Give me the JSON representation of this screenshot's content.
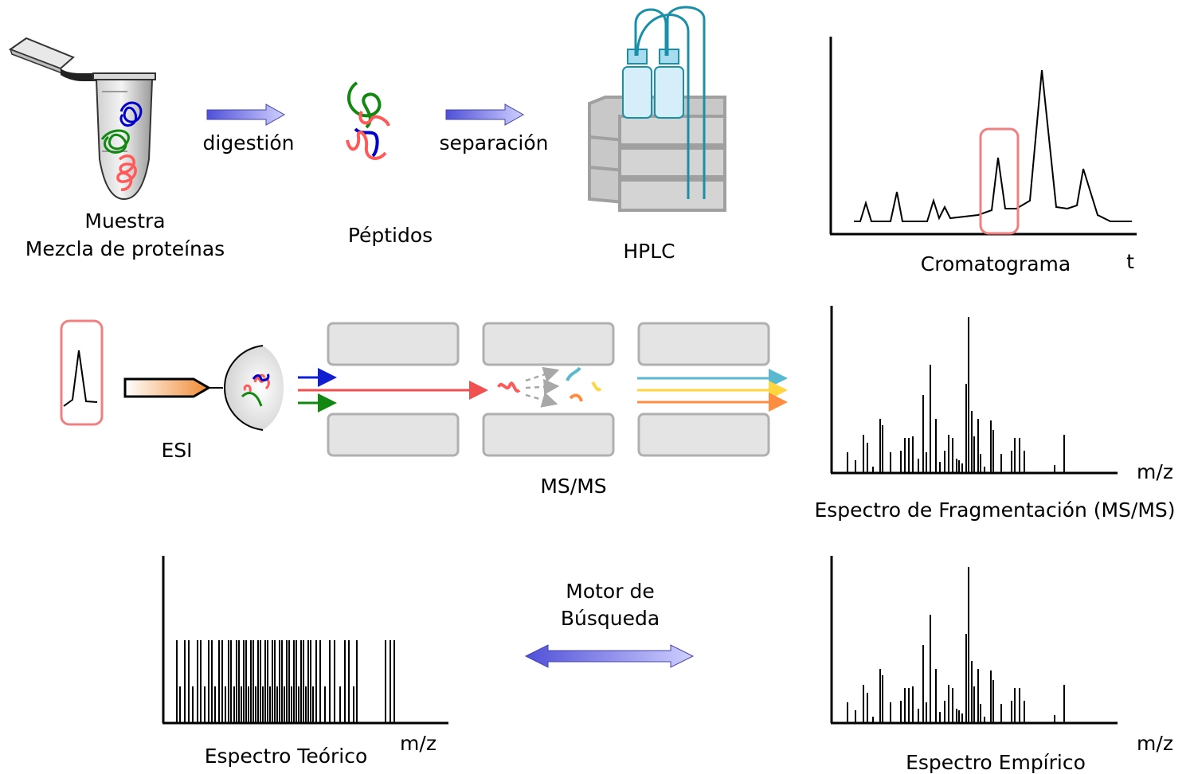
{
  "colors": {
    "arrow_start": "#5555dd",
    "arrow_end": "#c8c8ff",
    "protein_blue": "#0000cc",
    "protein_green": "#118811",
    "protein_red": "#ff5a5a",
    "highlight_box": "#f08080",
    "hplc_tube": "#1a8fa8",
    "hplc_bottle": "#d6eefa",
    "hplc_block": "#c7c7c7",
    "analyzer_plate": "#e4e4e4",
    "esi_orange": "#f08a33",
    "frag_cyan": "#5ab8d0",
    "frag_yellow": "#ffd640",
    "frag_orange": "#ff8c40"
  },
  "sample": {
    "line1": "Muestra",
    "line2": "Mezcla de proteínas"
  },
  "step_digestion": "digestión",
  "peptides": "Péptidos",
  "step_separation": "separación",
  "hplc": "HPLC",
  "chromatogram": {
    "title": "Cromatograma",
    "axis_label": "t"
  },
  "esi": "ESI",
  "msms": "MS/MS",
  "fragmentation_spectrum": {
    "title": "Espectro de Fragmentación (MS/MS)",
    "axis_label": "m/z"
  },
  "search_engine": {
    "line1": "Motor de",
    "line2": "Búsqueda"
  },
  "theoretical_spectrum": {
    "title": "Espectro Teórico",
    "axis_label": "m/z"
  },
  "empirical_spectrum": {
    "title": "Espectro Empírico",
    "axis_label": "m/z"
  }
}
